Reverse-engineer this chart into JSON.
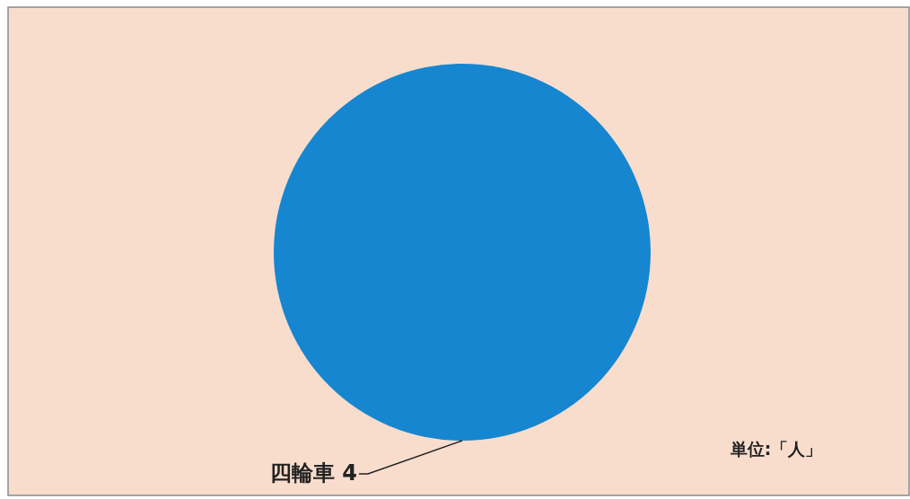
{
  "chart_data": {
    "type": "pie",
    "categories": [
      "四輪車"
    ],
    "values": [
      4
    ],
    "colors": [
      "#1686d0"
    ],
    "data_labels": true,
    "annotations": [
      "単位:「人」"
    ]
  }
}
